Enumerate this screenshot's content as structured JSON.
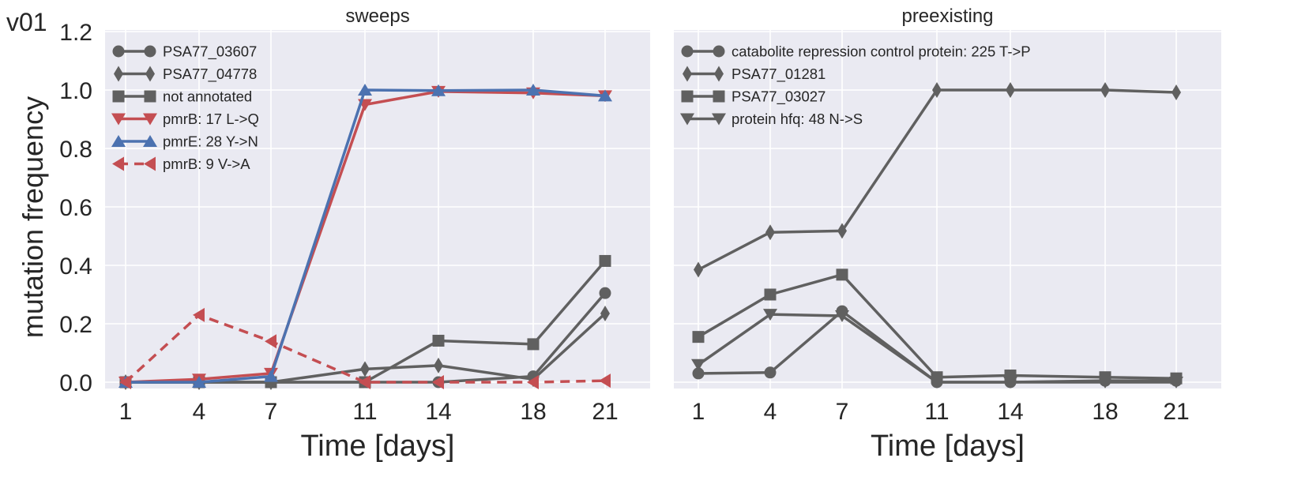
{
  "figure_label": "v01",
  "ylabel": "mutation frequency",
  "chart_data": [
    {
      "type": "line",
      "title": "sweeps",
      "xlabel": "Time [days]",
      "ylabel": "mutation frequency",
      "x": [
        1,
        4,
        7,
        11,
        14,
        18,
        21
      ],
      "xticks": [
        "1",
        "4",
        "7",
        "11",
        "14",
        "18",
        "21"
      ],
      "ylim": [
        -0.02,
        1.2
      ],
      "yticks": [
        "0.0",
        "0.2",
        "0.4",
        "0.6",
        "0.8",
        "1.0",
        "1.2"
      ],
      "grid": true,
      "legend_position": "top-left",
      "series": [
        {
          "name": "PSA77_03607",
          "marker": "circle",
          "color": "#606060",
          "dash": false,
          "values": [
            0.0,
            0.0,
            0.0,
            0.0,
            0.0,
            0.02,
            0.305
          ]
        },
        {
          "name": "PSA77_04778",
          "marker": "diamond",
          "color": "#606060",
          "dash": false,
          "values": [
            0.0,
            0.0,
            0.0,
            0.045,
            0.057,
            0.01,
            0.235
          ]
        },
        {
          "name": "not annotated",
          "marker": "square",
          "color": "#606060",
          "dash": false,
          "values": [
            0.0,
            0.0,
            0.0,
            0.0,
            0.142,
            0.13,
            0.415
          ]
        },
        {
          "name": "pmrB: 17 L->Q",
          "marker": "triangle-down",
          "color": "#c44e52",
          "dash": false,
          "values": [
            0.0,
            0.01,
            0.03,
            0.95,
            0.995,
            0.99,
            0.98
          ]
        },
        {
          "name": "pmrE: 28 Y->N",
          "marker": "triangle-up",
          "color": "#4c72b0",
          "dash": false,
          "values": [
            0.0,
            0.0,
            0.02,
            1.0,
            0.998,
            1.0,
            0.98
          ]
        },
        {
          "name": "pmrB: 9 V->A",
          "marker": "triangle-left",
          "color": "#c44e52",
          "dash": true,
          "values": [
            0.0,
            0.23,
            0.14,
            0.0,
            0.0,
            0.0,
            0.005
          ]
        }
      ]
    },
    {
      "type": "line",
      "title": "preexisting",
      "xlabel": "Time [days]",
      "ylabel": "",
      "x": [
        1,
        4,
        7,
        11,
        14,
        18,
        21
      ],
      "xticks": [
        "1",
        "4",
        "7",
        "11",
        "14",
        "18",
        "21"
      ],
      "ylim": [
        -0.02,
        1.2
      ],
      "grid": true,
      "legend_position": "top-left",
      "series": [
        {
          "name": "catabolite repression control protein: 225 T->P",
          "marker": "circle",
          "color": "#606060",
          "dash": false,
          "values": [
            0.03,
            0.033,
            0.243,
            0.0,
            0.0,
            0.005,
            0.005
          ]
        },
        {
          "name": "PSA77_01281",
          "marker": "diamond",
          "color": "#606060",
          "dash": false,
          "values": [
            0.385,
            0.513,
            0.518,
            1.0,
            1.0,
            1.0,
            0.992
          ]
        },
        {
          "name": "PSA77_03027",
          "marker": "square",
          "color": "#606060",
          "dash": false,
          "values": [
            0.155,
            0.3,
            0.368,
            0.017,
            0.023,
            0.017,
            0.013
          ]
        },
        {
          "name": "protein hfq: 48 N->S",
          "marker": "triangle-down",
          "color": "#606060",
          "dash": false,
          "values": [
            0.06,
            0.232,
            0.227,
            0.0,
            0.0,
            0.0,
            0.0
          ]
        }
      ]
    }
  ]
}
